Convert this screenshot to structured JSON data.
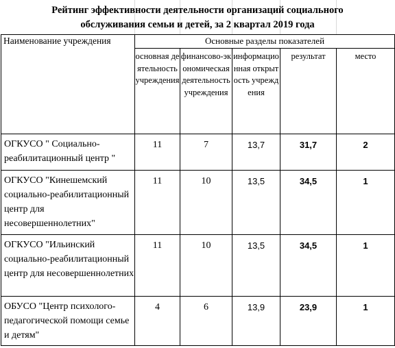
{
  "title": {
    "line1": "Рейтинг эффективности деятельности  организаций социального",
    "line2": "обслуживания семьи и детей, за 2 квартал 2019 года"
  },
  "header": {
    "name_col": "Наименование учреждения",
    "group": "Основные разделы показателей",
    "columns": [
      "основная деятельность учреждения",
      "финансово-экономическая деятельность учреждения",
      "информационная открытость учреждения",
      "результат",
      "место"
    ]
  },
  "rows": [
    {
      "name": "ОГКУСО \" Социально-реабилитационный центр \"",
      "values": [
        "11",
        "7",
        "13,7",
        "31,7",
        "2"
      ]
    },
    {
      "name": "ОГКУСО \"Кинешемский социально-реабилитационный центр для несовершеннолетних\"",
      "values": [
        "11",
        "10",
        "13,5",
        "34,5",
        "1"
      ]
    },
    {
      "name": "ОГКУСО \"Ильинский социально-реабилитационный центр для несовершеннолетних",
      "values": [
        "11",
        "10",
        "13,5",
        "34,5",
        "1"
      ]
    },
    {
      "name": "ОБУСО \"Центр психолого-педагогической помощи семье и детям\"",
      "values": [
        "4",
        "6",
        "13,9",
        "23,9",
        "1"
      ]
    }
  ]
}
